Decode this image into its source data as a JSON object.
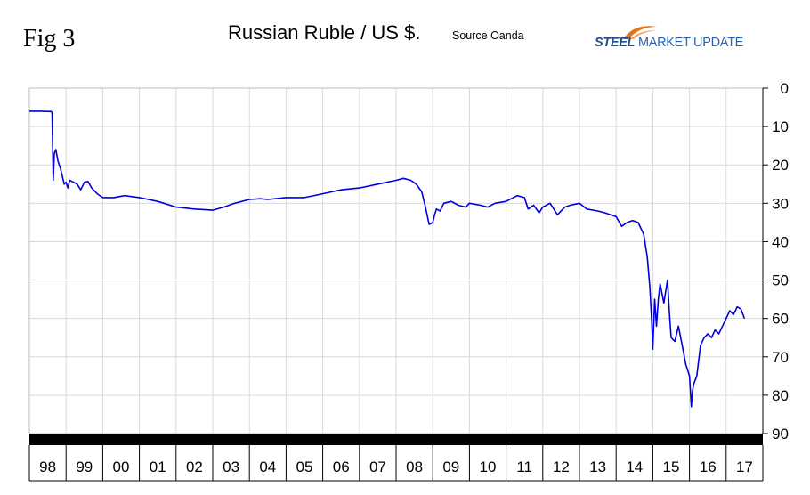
{
  "figure_label": "Fig 3",
  "logo": {
    "word1": "STEEL",
    "word2": "MARKET UPDATE"
  },
  "colors": {
    "line": "#0000dd",
    "grid": "#d9d9d9",
    "frame": "#000000",
    "logo_orange": "#e8731f",
    "logo_blue": "#1f4e8c"
  },
  "chart_data": {
    "type": "line",
    "title": "Russian Ruble / US $.",
    "subtitle": "Source Oanda",
    "x_categories": [
      "98",
      "99",
      "00",
      "01",
      "02",
      "03",
      "04",
      "05",
      "06",
      "07",
      "08",
      "09",
      "10",
      "11",
      "12",
      "13",
      "14",
      "15",
      "16",
      "17"
    ],
    "y_ticks": [
      0,
      10,
      20,
      30,
      40,
      50,
      60,
      70,
      80,
      90
    ],
    "ylim": [
      0,
      90
    ],
    "y_inverted": true,
    "y_axis_side": "right",
    "grid": true,
    "legend": "none",
    "series": [
      {
        "x": [
          1998.0,
          1998.3,
          1998.6,
          1998.62,
          1998.65,
          1998.68,
          1998.72,
          1998.78,
          1998.85,
          1998.9,
          1998.95,
          1999.0,
          1999.05,
          1999.1,
          1999.2,
          1999.3,
          1999.4,
          1999.5,
          1999.6,
          1999.7,
          1999.85,
          2000.0,
          2000.3,
          2000.6,
          2001.0,
          2001.5,
          2002.0,
          2002.5,
          2003.0,
          2003.3,
          2003.6,
          2004.0,
          2004.3,
          2004.5,
          2005.0,
          2005.5,
          2006.0,
          2006.5,
          2007.0,
          2007.5,
          2008.0,
          2008.2,
          2008.4,
          2008.55,
          2008.7,
          2008.8,
          2008.9,
          2009.0,
          2009.05,
          2009.1,
          2009.2,
          2009.3,
          2009.5,
          2009.7,
          2009.9,
          2010.0,
          2010.3,
          2010.5,
          2010.7,
          2011.0,
          2011.3,
          2011.5,
          2011.6,
          2011.75,
          2011.9,
          2012.0,
          2012.2,
          2012.4,
          2012.6,
          2012.75,
          2013.0,
          2013.2,
          2013.5,
          2013.7,
          2014.0,
          2014.15,
          2014.3,
          2014.45,
          2014.6,
          2014.75,
          2014.85,
          2014.92,
          2014.97,
          2015.0,
          2015.05,
          2015.1,
          2015.15,
          2015.2,
          2015.3,
          2015.4,
          2015.45,
          2015.5,
          2015.6,
          2015.7,
          2015.8,
          2015.9,
          2016.0,
          2016.05,
          2016.08,
          2016.12,
          2016.2,
          2016.3,
          2016.4,
          2016.5,
          2016.6,
          2016.7,
          2016.8,
          2016.9,
          2017.0,
          2017.1,
          2017.2,
          2017.3,
          2017.4,
          2017.5
        ],
        "values": [
          6.0,
          6.0,
          6.1,
          6.5,
          24.0,
          17.0,
          16.0,
          19.0,
          21.0,
          23.0,
          25.0,
          24.5,
          26.0,
          24.0,
          24.5,
          25.0,
          26.5,
          24.5,
          24.3,
          26.0,
          27.5,
          28.5,
          28.5,
          28.0,
          28.5,
          29.5,
          31.0,
          31.5,
          31.8,
          31.0,
          30.0,
          29.0,
          28.8,
          29.0,
          28.5,
          28.5,
          27.5,
          26.5,
          26.0,
          25.0,
          24.0,
          23.5,
          24.0,
          25.0,
          27.0,
          31.0,
          35.5,
          35.0,
          33.0,
          31.5,
          32.0,
          30.0,
          29.5,
          30.5,
          31.0,
          30.0,
          30.5,
          31.0,
          30.0,
          29.5,
          28.0,
          28.5,
          31.5,
          30.5,
          32.5,
          31.0,
          30.0,
          33.0,
          31.0,
          30.5,
          30.0,
          31.5,
          32.0,
          32.5,
          33.5,
          36.0,
          35.0,
          34.5,
          35.0,
          38.0,
          44.0,
          52.0,
          61.0,
          68.0,
          55.0,
          62.0,
          55.0,
          51.0,
          56.0,
          50.0,
          58.0,
          65.0,
          66.0,
          62.0,
          67.0,
          72.0,
          75.0,
          83.0,
          79.0,
          77.0,
          75.0,
          67.0,
          65.0,
          64.0,
          65.0,
          63.0,
          64.0,
          62.0,
          60.0,
          58.0,
          59.0,
          57.0,
          57.5,
          60.0
        ]
      }
    ]
  }
}
